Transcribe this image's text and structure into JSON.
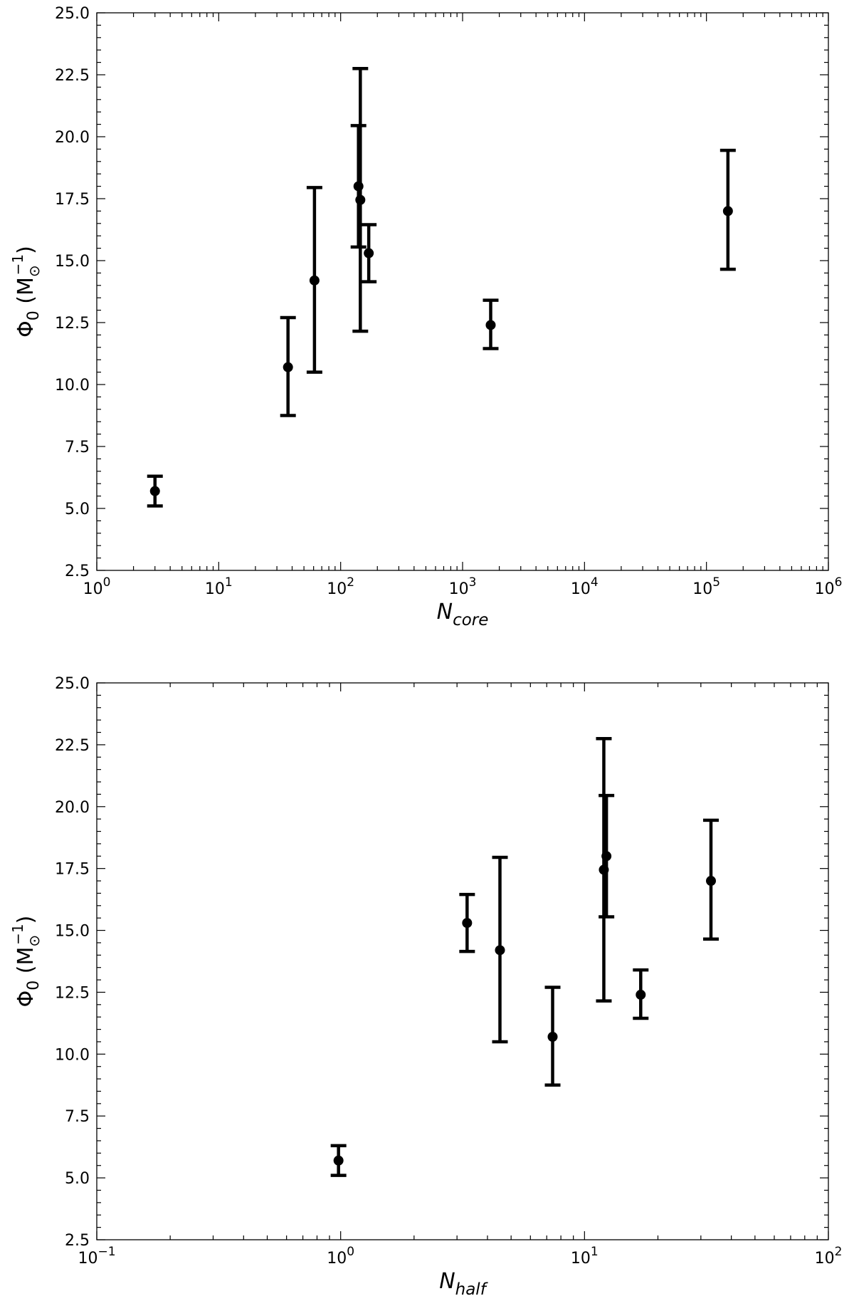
{
  "chart_data": [
    {
      "type": "scatter",
      "xscale": "log",
      "xlim": [
        1,
        1000000
      ],
      "ylim": [
        2.5,
        25.0
      ],
      "ylabel": {
        "base": "Φ",
        "sub": "0",
        "unit_open": " (M",
        "unit_sub": "⊙",
        "unit_sup": "−1",
        "unit_close": ")"
      },
      "xlabel": {
        "base": "N",
        "sub": "core"
      },
      "x_ticks": [
        {
          "value": 1,
          "base": "10",
          "exp": "0"
        },
        {
          "value": 10,
          "base": "10",
          "exp": "1"
        },
        {
          "value": 100,
          "base": "10",
          "exp": "2"
        },
        {
          "value": 1000,
          "base": "10",
          "exp": "3"
        },
        {
          "value": 10000,
          "base": "10",
          "exp": "4"
        },
        {
          "value": 100000,
          "base": "10",
          "exp": "5"
        },
        {
          "value": 1000000,
          "base": "10",
          "exp": "6"
        }
      ],
      "y_ticks": [
        "2.5",
        "5.0",
        "7.5",
        "10.0",
        "12.5",
        "15.0",
        "17.5",
        "20.0",
        "22.5",
        "25.0"
      ],
      "grid": false,
      "points": [
        {
          "x": 3.0,
          "y": 5.7,
          "ylow": 5.1,
          "yhigh": 6.3
        },
        {
          "x": 37,
          "y": 10.7,
          "ylow": 8.75,
          "yhigh": 12.7
        },
        {
          "x": 61,
          "y": 14.2,
          "ylow": 10.5,
          "yhigh": 17.95
        },
        {
          "x": 140,
          "y": 18.0,
          "ylow": 15.55,
          "yhigh": 20.45
        },
        {
          "x": 145,
          "y": 17.45,
          "ylow": 12.15,
          "yhigh": 22.75
        },
        {
          "x": 170,
          "y": 15.3,
          "ylow": 14.15,
          "yhigh": 16.45
        },
        {
          "x": 1700,
          "y": 12.4,
          "ylow": 11.45,
          "yhigh": 13.4
        },
        {
          "x": 150000,
          "y": 17.0,
          "ylow": 14.65,
          "yhigh": 19.45
        }
      ]
    },
    {
      "type": "scatter",
      "xscale": "log",
      "xlim": [
        0.1,
        100
      ],
      "ylim": [
        2.5,
        25.0
      ],
      "ylabel": {
        "base": "Φ",
        "sub": "0",
        "unit_open": " (M",
        "unit_sub": "⊙",
        "unit_sup": "−1",
        "unit_close": ")"
      },
      "xlabel": {
        "base": "N",
        "sub": "half"
      },
      "x_ticks": [
        {
          "value": 0.1,
          "base": "10",
          "exp": "−1"
        },
        {
          "value": 1,
          "base": "10",
          "exp": "0"
        },
        {
          "value": 10,
          "base": "10",
          "exp": "1"
        },
        {
          "value": 100,
          "base": "10",
          "exp": "2"
        }
      ],
      "y_ticks": [
        "2.5",
        "5.0",
        "7.5",
        "10.0",
        "12.5",
        "15.0",
        "17.5",
        "20.0",
        "22.5",
        "25.0"
      ],
      "grid": false,
      "points": [
        {
          "x": 0.98,
          "y": 5.7,
          "ylow": 5.1,
          "yhigh": 6.3
        },
        {
          "x": 3.3,
          "y": 15.3,
          "ylow": 14.15,
          "yhigh": 16.45
        },
        {
          "x": 4.5,
          "y": 14.2,
          "ylow": 10.5,
          "yhigh": 17.95
        },
        {
          "x": 7.4,
          "y": 10.7,
          "ylow": 8.75,
          "yhigh": 12.7
        },
        {
          "x": 12.0,
          "y": 17.45,
          "ylow": 12.15,
          "yhigh": 22.75
        },
        {
          "x": 12.3,
          "y": 18.0,
          "ylow": 15.55,
          "yhigh": 20.45
        },
        {
          "x": 17.0,
          "y": 12.4,
          "ylow": 11.45,
          "yhigh": 13.4
        },
        {
          "x": 33.0,
          "y": 17.0,
          "ylow": 14.65,
          "yhigh": 19.45
        }
      ]
    }
  ]
}
